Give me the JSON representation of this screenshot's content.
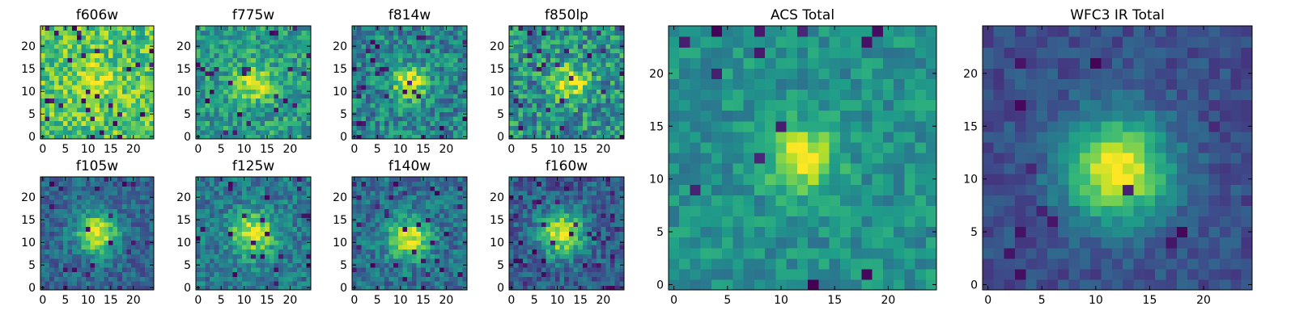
{
  "figure_title": "",
  "colormap": {
    "name": "viridis",
    "stops": [
      "#440154",
      "#482878",
      "#3e4989",
      "#31688e",
      "#26828e",
      "#1f9e89",
      "#35b779",
      "#6ece58",
      "#b5de2b",
      "#fde725"
    ]
  },
  "chart_data": [
    {
      "type": "heatmap",
      "title": "f606w",
      "grid": [
        25,
        25
      ],
      "xlim": [
        0,
        25
      ],
      "ylim": [
        0,
        25
      ],
      "xticks": [
        0,
        5,
        10,
        15,
        20
      ],
      "yticks": [
        0,
        5,
        10,
        15,
        20
      ],
      "source_center": [
        12,
        12
      ],
      "source_width": 3.0,
      "peak": 0.92,
      "background": 0.72,
      "noise": 0.22,
      "dark_pixel_rate": 0.04,
      "seed": 11
    },
    {
      "type": "heatmap",
      "title": "f775w",
      "grid": [
        25,
        25
      ],
      "xlim": [
        0,
        25
      ],
      "ylim": [
        0,
        25
      ],
      "xticks": [
        0,
        5,
        10,
        15,
        20
      ],
      "yticks": [
        0,
        5,
        10,
        15,
        20
      ],
      "source_center": [
        12,
        12
      ],
      "source_width": 2.8,
      "peak": 0.95,
      "background": 0.55,
      "noise": 0.2,
      "dark_pixel_rate": 0.03,
      "seed": 23
    },
    {
      "type": "heatmap",
      "title": "f814w",
      "grid": [
        25,
        25
      ],
      "xlim": [
        0,
        25
      ],
      "ylim": [
        0,
        25
      ],
      "xticks": [
        0,
        5,
        10,
        15,
        20
      ],
      "yticks": [
        0,
        5,
        10,
        15,
        20
      ],
      "source_center": [
        12,
        12
      ],
      "source_width": 2.6,
      "peak": 0.97,
      "background": 0.45,
      "noise": 0.22,
      "dark_pixel_rate": 0.05,
      "seed": 37
    },
    {
      "type": "heatmap",
      "title": "f850lp",
      "grid": [
        25,
        25
      ],
      "xlim": [
        0,
        25
      ],
      "ylim": [
        0,
        25
      ],
      "xticks": [
        0,
        5,
        10,
        15,
        20
      ],
      "yticks": [
        0,
        5,
        10,
        15,
        20
      ],
      "source_center": [
        13,
        12
      ],
      "source_width": 2.7,
      "peak": 0.95,
      "background": 0.5,
      "noise": 0.25,
      "dark_pixel_rate": 0.05,
      "seed": 41
    },
    {
      "type": "heatmap",
      "title": "f105w",
      "grid": [
        25,
        25
      ],
      "xlim": [
        0,
        25
      ],
      "ylim": [
        0,
        25
      ],
      "xticks": [
        0,
        5,
        10,
        15,
        20
      ],
      "yticks": [
        0,
        5,
        10,
        15,
        20
      ],
      "source_center": [
        12,
        12
      ],
      "source_width": 3.2,
      "peak": 0.97,
      "background": 0.33,
      "noise": 0.15,
      "dark_pixel_rate": 0.04,
      "seed": 53
    },
    {
      "type": "heatmap",
      "title": "f125w",
      "grid": [
        25,
        25
      ],
      "xlim": [
        0,
        25
      ],
      "ylim": [
        0,
        25
      ],
      "xticks": [
        0,
        5,
        10,
        15,
        20
      ],
      "yticks": [
        0,
        5,
        10,
        15,
        20
      ],
      "source_center": [
        12,
        12
      ],
      "source_width": 3.4,
      "peak": 0.95,
      "background": 0.4,
      "noise": 0.17,
      "dark_pixel_rate": 0.04,
      "seed": 61
    },
    {
      "type": "heatmap",
      "title": "f140w",
      "grid": [
        25,
        25
      ],
      "xlim": [
        0,
        25
      ],
      "ylim": [
        0,
        25
      ],
      "xticks": [
        0,
        5,
        10,
        15,
        20
      ],
      "yticks": [
        0,
        5,
        10,
        15,
        20
      ],
      "source_center": [
        12,
        11
      ],
      "source_width": 3.2,
      "peak": 0.96,
      "background": 0.37,
      "noise": 0.17,
      "dark_pixel_rate": 0.05,
      "seed": 71
    },
    {
      "type": "heatmap",
      "title": "f160w",
      "grid": [
        25,
        25
      ],
      "xlim": [
        0,
        25
      ],
      "ylim": [
        0,
        25
      ],
      "xticks": [
        0,
        5,
        10,
        15,
        20
      ],
      "yticks": [
        0,
        5,
        10,
        15,
        20
      ],
      "source_center": [
        11,
        12
      ],
      "source_width": 3.4,
      "peak": 0.97,
      "background": 0.3,
      "noise": 0.17,
      "dark_pixel_rate": 0.07,
      "seed": 83
    },
    {
      "type": "heatmap",
      "title": "ACS Total",
      "grid": [
        25,
        25
      ],
      "xlim": [
        0,
        25
      ],
      "ylim": [
        0,
        25
      ],
      "xticks": [
        0,
        5,
        10,
        15,
        20
      ],
      "yticks": [
        0,
        5,
        10,
        15,
        20
      ],
      "source_center": [
        12,
        12
      ],
      "source_width": 2.2,
      "peak": 0.98,
      "background": 0.5,
      "noise": 0.13,
      "dark_pixel_rate": 0.03,
      "seed": 97
    },
    {
      "type": "heatmap",
      "title": "WFC3 IR Total",
      "grid": [
        25,
        25
      ],
      "xlim": [
        0,
        25
      ],
      "ylim": [
        0,
        25
      ],
      "xticks": [
        0,
        5,
        10,
        15,
        20
      ],
      "yticks": [
        0,
        5,
        10,
        15,
        20
      ],
      "source_center": [
        12,
        11
      ],
      "source_width": 3.5,
      "peak": 0.98,
      "background": 0.24,
      "noise": 0.09,
      "dark_pixel_rate": 0.03,
      "seed": 109
    }
  ]
}
